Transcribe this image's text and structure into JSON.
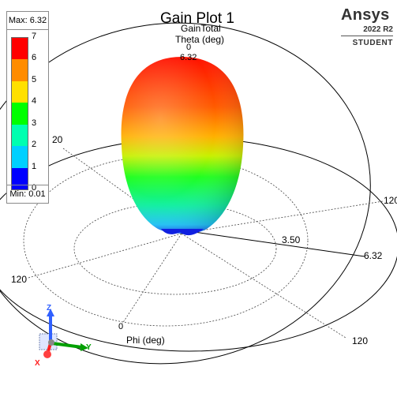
{
  "plot": {
    "title": "Gain Plot 1",
    "quantity": "GainTotal",
    "theta_axis_label": "Theta (deg)",
    "theta_zero_label": "0",
    "pole_max_label": "6.32",
    "phi_axis_label": "Phi (deg)",
    "phi_zero_label": "0",
    "ring_label_120": "120",
    "ring_label_20": "20",
    "mid_radius_label": "3.50",
    "max_radius_label": "6.32"
  },
  "legend": {
    "max_label": "Max: 6.32",
    "min_label": "Min: 0.01",
    "ticks": [
      "7",
      "6",
      "5",
      "4",
      "3",
      "2",
      "1",
      "0"
    ],
    "colors": [
      "#ff0000",
      "#ff8c00",
      "#ffe000",
      "#00ff00",
      "#00ffb0",
      "#00d0ff",
      "#0000ff"
    ]
  },
  "brand": {
    "name": "Ansys",
    "version": "2022 R2",
    "edition": "STUDENT"
  },
  "triad": {
    "x_label": "X",
    "y_label": "Y",
    "z_label": "Z",
    "x_color": "#ff2020",
    "y_color": "#00a000",
    "z_color": "#3060ff"
  }
}
